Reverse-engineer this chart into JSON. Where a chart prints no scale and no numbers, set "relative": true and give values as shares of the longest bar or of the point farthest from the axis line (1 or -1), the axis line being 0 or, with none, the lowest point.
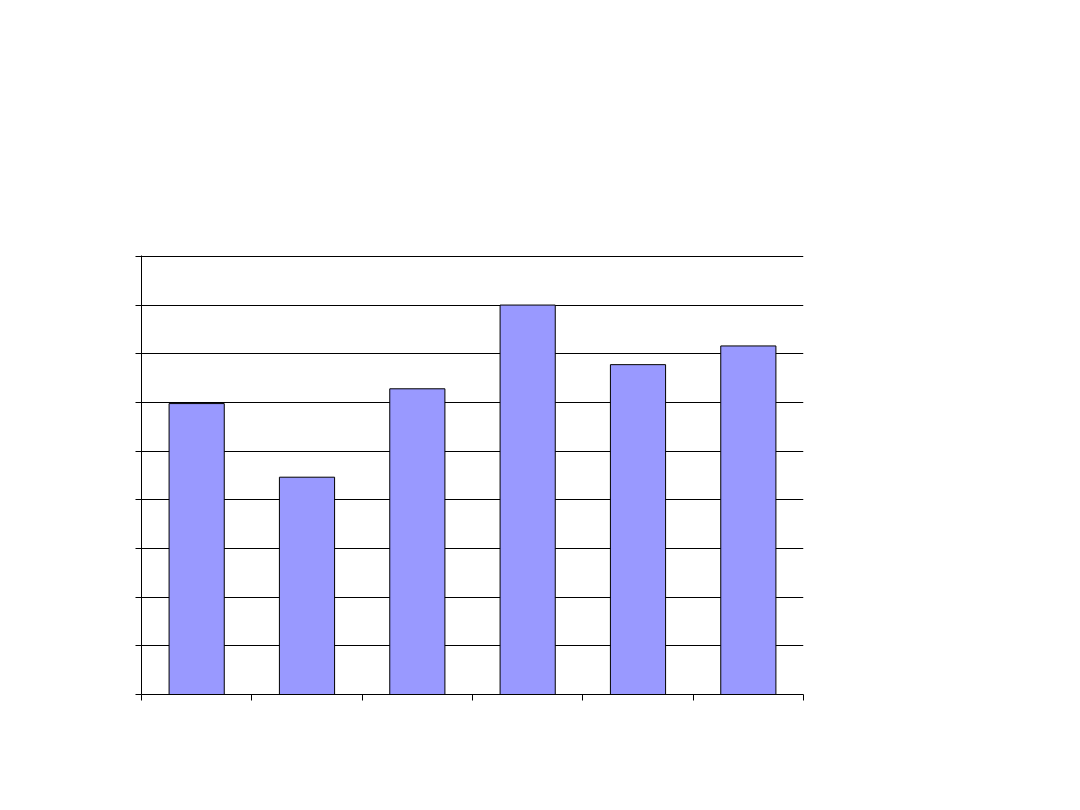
{
  "chart_data": {
    "type": "bar",
    "relative": true,
    "categories": [
      null,
      null,
      null,
      null,
      null,
      null
    ],
    "series": [
      {
        "color": "#9999ff",
        "values": [
          0.747,
          0.558,
          0.785,
          1,
          0.847,
          0.895
        ]
      }
    ],
    "grid": "y",
    "tick_labels": false
  }
}
